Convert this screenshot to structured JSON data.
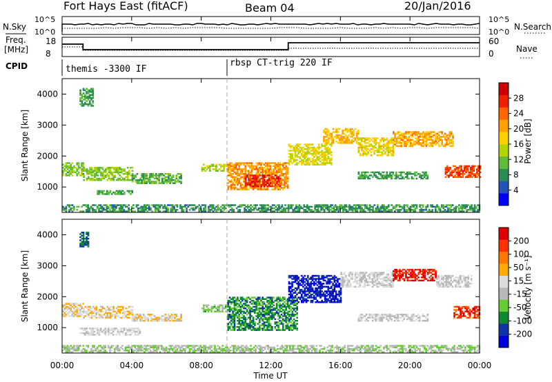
{
  "header": {
    "station": "Fort Hays East (fitACF)",
    "beam": "Beam 04",
    "date": "20/Jan/2016"
  },
  "small_panels": {
    "nsky_label": "N.Sky",
    "nsearch_label": "N.Search",
    "nsky_ticks": [
      "10^5",
      "10^0"
    ],
    "nsearch_ticks": [
      "10^5",
      "10^0"
    ],
    "freq_label": "Freq.",
    "freq_unit": "[MHz]",
    "freq_ticks": [
      "18",
      "8"
    ],
    "nave_label": "Nave",
    "nave_ticks": [
      "60",
      "0"
    ],
    "cpid_label": "CPID",
    "cpid_modes": [
      {
        "text": "themis -3300 IF",
        "start_hour": 0
      },
      {
        "text": "rbsp CT-trig 220 IF",
        "start_hour": 9.5
      }
    ]
  },
  "x_axis": {
    "title": "Time UT",
    "ticks": [
      "00:00",
      "04:00",
      "08:00",
      "12:00",
      "16:00",
      "20:00",
      "00:00"
    ]
  },
  "colors": {
    "power": [
      "#0000ff",
      "#2255bb",
      "#2b8c55",
      "#5fbb3a",
      "#b3d400",
      "#ffd000",
      "#ffa000",
      "#ff6600",
      "#ee2200",
      "#cc0000"
    ],
    "velocity": [
      "#0000dd",
      "#1133aa",
      "#0d8a30",
      "#66cc33",
      "#b8b8b8",
      "#dcdcdc",
      "#ffaa00",
      "#ff7700",
      "#ff3300",
      "#dd0000"
    ]
  },
  "chart_data": [
    {
      "type": "heatmap",
      "name": "power",
      "ylabel": "Slant Range [km]",
      "yticks": [
        1000,
        2000,
        3000,
        4000
      ],
      "xlim_hours": [
        0,
        24
      ],
      "ylim_km": [
        180,
        4500
      ],
      "colorbar_title": "Power [dB]",
      "colorbar_ticks": [
        "4",
        "8",
        "12",
        "16",
        "20",
        "24",
        "28"
      ],
      "clim": [
        0,
        30
      ],
      "regions": [
        {
          "t0": 0.0,
          "t1": 1.2,
          "r0": 1350,
          "r1": 1800,
          "v": 11
        },
        {
          "t0": 1.2,
          "t1": 4.0,
          "r0": 1200,
          "r1": 1650,
          "v": 12
        },
        {
          "t0": 4.0,
          "t1": 6.8,
          "r0": 1100,
          "r1": 1450,
          "v": 10
        },
        {
          "t0": 1.0,
          "t1": 1.8,
          "r0": 3600,
          "r1": 4200,
          "v": 9
        },
        {
          "t0": 2.0,
          "t1": 4.0,
          "r0": 750,
          "r1": 900,
          "v": 9
        },
        {
          "t0": 8.0,
          "t1": 9.5,
          "r0": 1500,
          "r1": 1750,
          "v": 13
        },
        {
          "t0": 9.5,
          "t1": 13.0,
          "r0": 900,
          "r1": 1800,
          "v": 20
        },
        {
          "t0": 10.5,
          "t1": 12.5,
          "r0": 1000,
          "r1": 1400,
          "v": 26
        },
        {
          "t0": 13.0,
          "t1": 15.5,
          "r0": 1700,
          "r1": 2400,
          "v": 15
        },
        {
          "t0": 15.0,
          "t1": 17.0,
          "r0": 2400,
          "r1": 2900,
          "v": 18
        },
        {
          "t0": 17.0,
          "t1": 19.0,
          "r0": 2000,
          "r1": 2600,
          "v": 16
        },
        {
          "t0": 19.0,
          "t1": 22.5,
          "r0": 2300,
          "r1": 2800,
          "v": 19
        },
        {
          "t0": 17.0,
          "t1": 21.0,
          "r0": 1250,
          "r1": 1500,
          "v": 9
        },
        {
          "t0": 22.0,
          "t1": 24.0,
          "r0": 1300,
          "r1": 1700,
          "v": 24
        },
        {
          "t0": 0.0,
          "t1": 24.0,
          "r0": 190,
          "r1": 420,
          "v": 8
        }
      ]
    },
    {
      "type": "heatmap",
      "name": "velocity",
      "ylabel": "Slant Range [km]",
      "yticks": [
        1000,
        2000,
        3000,
        4000
      ],
      "xlim_hours": [
        0,
        24
      ],
      "ylim_km": [
        180,
        4500
      ],
      "colorbar_title": "Velocity [m s⁻¹]",
      "colorbar_ticks": [
        "-200",
        "-100",
        "-50",
        "-15",
        "15",
        "50",
        "100",
        "200"
      ],
      "clim": [
        -250,
        250
      ],
      "regions": [
        {
          "t0": 0.0,
          "t1": 1.2,
          "r0": 1350,
          "r1": 1800,
          "v": 30
        },
        {
          "t0": 1.2,
          "t1": 4.0,
          "r0": 1300,
          "r1": 1700,
          "v": 40
        },
        {
          "t0": 4.0,
          "t1": 6.8,
          "r0": 1200,
          "r1": 1450,
          "v": 30
        },
        {
          "t0": 1.0,
          "t1": 4.5,
          "r0": 750,
          "r1": 1000,
          "v": 5
        },
        {
          "t0": 1.0,
          "t1": 1.5,
          "r0": 3600,
          "r1": 4100,
          "v": -150
        },
        {
          "t0": 8.0,
          "t1": 9.5,
          "r0": 1500,
          "r1": 1750,
          "v": -60
        },
        {
          "t0": 9.5,
          "t1": 13.5,
          "r0": 900,
          "r1": 2000,
          "v": -120
        },
        {
          "t0": 13.0,
          "t1": 16.0,
          "r0": 1800,
          "r1": 2700,
          "v": -200
        },
        {
          "t0": 16.0,
          "t1": 19.0,
          "r0": 2300,
          "r1": 2800,
          "v": 5
        },
        {
          "t0": 19.0,
          "t1": 21.5,
          "r0": 2500,
          "r1": 2900,
          "v": 200
        },
        {
          "t0": 21.5,
          "t1": 23.5,
          "r0": 2300,
          "r1": 2700,
          "v": 0
        },
        {
          "t0": 17.0,
          "t1": 21.0,
          "r0": 1200,
          "r1": 1450,
          "v": 0
        },
        {
          "t0": 22.5,
          "t1": 24.0,
          "r0": 1300,
          "r1": 1700,
          "v": 180
        },
        {
          "t0": 0.0,
          "t1": 24.0,
          "r0": 190,
          "r1": 400,
          "v": -40
        }
      ]
    }
  ]
}
